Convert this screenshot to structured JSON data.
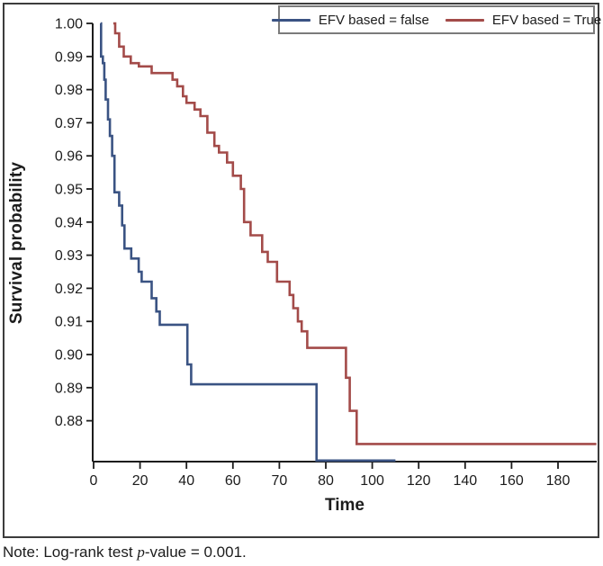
{
  "note": {
    "prefix": "Note: Log-rank test ",
    "italic_segment": "p",
    "suffix": "-value = 0.001."
  },
  "colors": {
    "axis": "#1c1c1c",
    "frame_border": "#3c3c3c",
    "legend_border": "#7b7b7b",
    "series_false_blue": "#3A5383",
    "series_true_red": "#A34B49"
  },
  "chart_data": {
    "type": "line",
    "subtype": "kaplan-meier-step",
    "title": "",
    "xlabel": "Time",
    "ylabel": "Survival probability",
    "x_tick_labels": [
      "0",
      "20",
      "40",
      "60",
      "70",
      "80",
      "100",
      "120",
      "140",
      "160",
      "180"
    ],
    "x_tick_values": [
      0,
      20,
      40,
      60,
      70,
      80,
      100,
      120,
      140,
      160,
      180
    ],
    "y_tick_labels": [
      "1.00",
      "0.99",
      "0.98",
      "0.97",
      "0.96",
      "0.95",
      "0.94",
      "0.93",
      "0.92",
      "0.91",
      "0.90",
      "0.89",
      "0.88"
    ],
    "y_tick_values": [
      1.0,
      0.99,
      0.98,
      0.97,
      0.96,
      0.95,
      0.94,
      0.93,
      0.92,
      0.91,
      0.9,
      0.89,
      0.88
    ],
    "ylim": [
      0.8665,
      1.0
    ],
    "grid": false,
    "legend_position": "top-right",
    "series": [
      {
        "name": "EFV based = false",
        "color": "#3A5383",
        "start": [
          3,
          1.0
        ],
        "drops": [
          [
            3.2,
            0.99
          ],
          [
            4,
            0.988
          ],
          [
            4.6,
            0.983
          ],
          [
            5.2,
            0.977
          ],
          [
            6.2,
            0.971
          ],
          [
            7,
            0.966
          ],
          [
            8,
            0.96
          ],
          [
            9,
            0.949
          ],
          [
            11,
            0.945
          ],
          [
            12.3,
            0.939
          ],
          [
            13.3,
            0.932
          ],
          [
            16.2,
            0.929
          ],
          [
            19.4,
            0.925
          ],
          [
            20.7,
            0.922
          ],
          [
            25,
            0.917
          ],
          [
            27,
            0.913
          ],
          [
            28.5,
            0.909
          ],
          [
            40.4,
            0.897
          ],
          [
            42,
            0.891
          ],
          [
            78,
            0.868
          ]
        ],
        "end_time": 110
      },
      {
        "name": "EFV based = True",
        "color": "#A34B49",
        "start": [
          8.5,
          1.0
        ],
        "drops": [
          [
            9.3,
            0.997
          ],
          [
            11,
            0.993
          ],
          [
            13,
            0.99
          ],
          [
            16,
            0.988
          ],
          [
            19.5,
            0.987
          ],
          [
            25,
            0.985
          ],
          [
            34,
            0.983
          ],
          [
            36,
            0.981
          ],
          [
            38.5,
            0.978
          ],
          [
            40,
            0.976
          ],
          [
            43.5,
            0.974
          ],
          [
            46,
            0.972
          ],
          [
            49,
            0.967
          ],
          [
            52,
            0.963
          ],
          [
            54,
            0.961
          ],
          [
            57.5,
            0.958
          ],
          [
            60,
            0.954
          ],
          [
            61.7,
            0.95
          ],
          [
            62.4,
            0.94
          ],
          [
            63.8,
            0.936
          ],
          [
            66.3,
            0.931
          ],
          [
            67.5,
            0.928
          ],
          [
            69.5,
            0.922
          ],
          [
            72.2,
            0.918
          ],
          [
            73,
            0.914
          ],
          [
            74,
            0.91
          ],
          [
            74.8,
            0.907
          ],
          [
            76,
            0.902
          ],
          [
            88.7,
            0.893
          ],
          [
            90.3,
            0.883
          ],
          [
            93.3,
            0.873
          ]
        ],
        "end_time": 196.5
      }
    ]
  }
}
